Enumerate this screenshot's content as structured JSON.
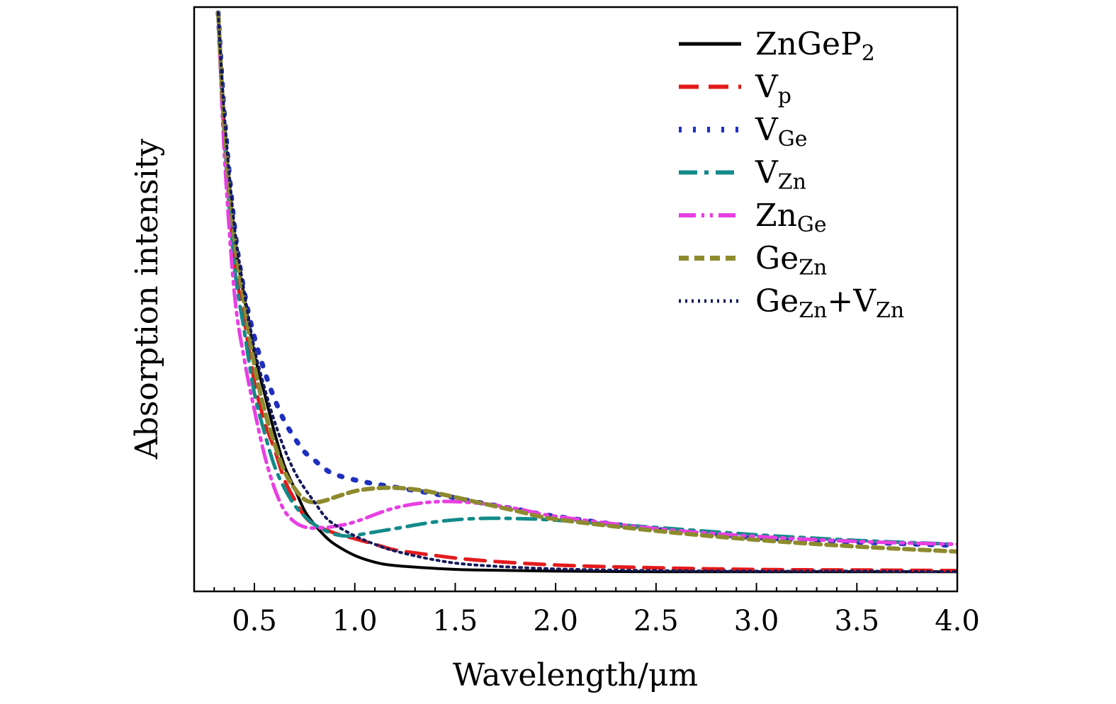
{
  "chart_data": {
    "type": "line",
    "title": "",
    "xlabel": "Wavelength/μm",
    "ylabel": "Absorption intensity",
    "xlim": [
      0.2,
      4.0
    ],
    "ylim": [
      0,
      1
    ],
    "xticks": [
      0.5,
      1.0,
      1.5,
      2.0,
      2.5,
      3.0,
      3.5,
      4.0
    ],
    "xtick_labels": [
      "0.5",
      "1.0",
      "1.5",
      "2.0",
      "2.5",
      "3.0",
      "3.5",
      "4.0"
    ],
    "yticks_shown": false,
    "grid": false,
    "legend": "top-right",
    "series": [
      {
        "name": "ZnGeP2",
        "label_main": "ZnGeP",
        "label_sub": "2",
        "color": "#000000",
        "dash": "",
        "width": 4,
        "x": [
          0.32,
          0.35,
          0.4,
          0.45,
          0.5,
          0.55,
          0.6,
          0.65,
          0.7,
          0.75,
          0.8,
          0.85,
          0.9,
          1.0,
          1.1,
          1.2,
          1.4,
          1.6,
          2.0,
          2.5,
          3.0,
          3.5,
          4.0
        ],
        "y": [
          1.0,
          0.8,
          0.6,
          0.49,
          0.39,
          0.32,
          0.25,
          0.19,
          0.15,
          0.11,
          0.085,
          0.065,
          0.05,
          0.03,
          0.018,
          0.012,
          0.007,
          0.004,
          0.002,
          0.001,
          0.001,
          0.001,
          0.001
        ]
      },
      {
        "name": "Vp",
        "label_main": "V",
        "label_sub": "p",
        "color": "#e31a1c",
        "dash": "28 14",
        "width": 5,
        "x": [
          0.32,
          0.35,
          0.4,
          0.45,
          0.5,
          0.55,
          0.6,
          0.65,
          0.7,
          0.75,
          0.8,
          0.9,
          1.0,
          1.1,
          1.2,
          1.4,
          1.6,
          2.0,
          2.5,
          3.0,
          3.5,
          4.0
        ],
        "y": [
          1.0,
          0.78,
          0.56,
          0.45,
          0.34,
          0.27,
          0.22,
          0.165,
          0.13,
          0.1,
          0.085,
          0.07,
          0.06,
          0.05,
          0.04,
          0.03,
          0.022,
          0.013,
          0.008,
          0.005,
          0.004,
          0.003
        ]
      },
      {
        "name": "VGe",
        "label_main": "V",
        "label_sub": "Ge",
        "color": "#1f2fbf",
        "dash": "4 16",
        "width": 7,
        "x": [
          0.32,
          0.35,
          0.4,
          0.45,
          0.5,
          0.55,
          0.6,
          0.65,
          0.7,
          0.75,
          0.8,
          0.85,
          0.9,
          1.0,
          1.1,
          1.2,
          1.4,
          1.6,
          1.8,
          2.0,
          2.5,
          3.0,
          3.5,
          4.0
        ],
        "y": [
          1.0,
          0.82,
          0.62,
          0.5,
          0.42,
          0.36,
          0.31,
          0.27,
          0.24,
          0.215,
          0.2,
          0.185,
          0.175,
          0.165,
          0.158,
          0.152,
          0.14,
          0.126,
          0.113,
          0.1,
          0.077,
          0.062,
          0.054,
          0.048
        ]
      },
      {
        "name": "VZn",
        "label_main": "V",
        "label_sub": "Zn",
        "color": "#138a8a",
        "dash": "26 10 6 10",
        "width": 5,
        "x": [
          0.32,
          0.35,
          0.4,
          0.45,
          0.5,
          0.55,
          0.6,
          0.65,
          0.7,
          0.75,
          0.8,
          0.85,
          0.9,
          0.95,
          1.0,
          1.2,
          1.4,
          1.6,
          1.8,
          2.0,
          2.5,
          3.0,
          3.5,
          4.0
        ],
        "y": [
          1.0,
          0.78,
          0.55,
          0.43,
          0.32,
          0.25,
          0.19,
          0.15,
          0.12,
          0.1,
          0.085,
          0.075,
          0.068,
          0.065,
          0.066,
          0.078,
          0.09,
          0.096,
          0.096,
          0.093,
          0.08,
          0.067,
          0.057,
          0.05
        ]
      },
      {
        "name": "ZnGe",
        "label_main": "Zn",
        "label_sub": "Ge",
        "color": "#e83fe3",
        "dash": "24 8 4 8 4 8",
        "width": 5,
        "x": [
          0.32,
          0.35,
          0.4,
          0.45,
          0.5,
          0.55,
          0.6,
          0.65,
          0.7,
          0.75,
          0.8,
          0.85,
          0.9,
          1.0,
          1.2,
          1.4,
          1.6,
          1.8,
          2.0,
          2.5,
          3.0,
          3.5,
          4.0
        ],
        "y": [
          1.0,
          0.75,
          0.5,
          0.38,
          0.29,
          0.21,
          0.15,
          0.11,
          0.09,
          0.081,
          0.079,
          0.08,
          0.082,
          0.09,
          0.115,
          0.126,
          0.124,
          0.114,
          0.1,
          0.078,
          0.064,
          0.055,
          0.05
        ]
      },
      {
        "name": "GeZn",
        "label_main": "Ge",
        "label_sub": "Zn",
        "color": "#8e8a2e",
        "dash": "14 8",
        "width": 6,
        "x": [
          0.32,
          0.35,
          0.4,
          0.45,
          0.5,
          0.55,
          0.6,
          0.65,
          0.7,
          0.75,
          0.8,
          0.85,
          0.9,
          1.0,
          1.1,
          1.2,
          1.3,
          1.4,
          1.6,
          1.8,
          2.0,
          2.5,
          3.0,
          3.5,
          4.0
        ],
        "y": [
          1.0,
          0.8,
          0.6,
          0.48,
          0.37,
          0.29,
          0.23,
          0.18,
          0.15,
          0.13,
          0.125,
          0.128,
          0.134,
          0.145,
          0.15,
          0.151,
          0.148,
          0.142,
          0.126,
          0.11,
          0.095,
          0.074,
          0.058,
          0.046,
          0.037
        ]
      },
      {
        "name": "GeZn+VZn",
        "label_main": "Ge",
        "label_sub": "Zn",
        "label_main2": "+V",
        "label_sub2": "Zn",
        "color": "#141a5c",
        "dash": "3 6",
        "width": 4,
        "x": [
          0.32,
          0.35,
          0.4,
          0.45,
          0.5,
          0.55,
          0.6,
          0.65,
          0.7,
          0.75,
          0.8,
          0.85,
          0.9,
          1.0,
          1.1,
          1.2,
          1.4,
          1.6,
          2.0,
          2.5,
          3.0,
          3.5,
          4.0
        ],
        "y": [
          1.0,
          0.82,
          0.62,
          0.5,
          0.4,
          0.33,
          0.27,
          0.22,
          0.18,
          0.15,
          0.125,
          0.1,
          0.085,
          0.065,
          0.05,
          0.038,
          0.022,
          0.013,
          0.006,
          0.003,
          0.002,
          0.002,
          0.001
        ]
      }
    ]
  }
}
